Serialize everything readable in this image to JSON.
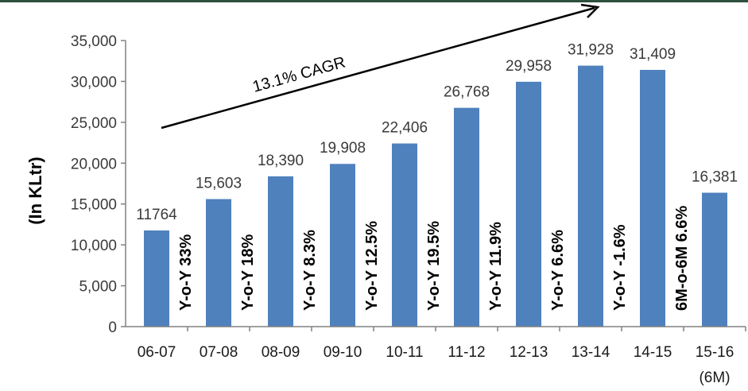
{
  "colors": {
    "bar": "#4F81BD",
    "top_rule": "#2F4F3F",
    "axis": "#808080"
  },
  "chart_data": {
    "type": "bar",
    "ylabel": "(In KLtr)",
    "ylim": [
      0,
      35000
    ],
    "yticks": [
      "0",
      "5,000",
      "10,000",
      "15,000",
      "20,000",
      "25,000",
      "30,000",
      "35,000"
    ],
    "grid": false,
    "categories": [
      "06-07",
      "07-08",
      "08-09",
      "09-10",
      "10-11",
      "11-12",
      "12-13",
      "13-14",
      "14-15",
      "15-16"
    ],
    "category_sublabels": [
      "",
      "",
      "",
      "",
      "",
      "",
      "",
      "",
      "",
      "(6M)"
    ],
    "values": [
      11764,
      15603,
      18390,
      19908,
      22406,
      26768,
      29958,
      31928,
      31409,
      16381
    ],
    "data_labels": [
      "11764",
      "15,603",
      "18,390",
      "19,908",
      "22,406",
      "26,768",
      "29,958",
      "31,928",
      "31,409",
      "16,381"
    ],
    "growth_labels": [
      "Y-o-Y  33%",
      "Y-o-Y  18%",
      "Y-o-Y  8.3%",
      "Y-o-Y 12.5%",
      "Y-o-Y  19.5%",
      "Y-o-Y  11.9%",
      "Y-o-Y  6.6%",
      "Y-o-Y  -1.6%",
      "6M-o-6M  6.6%"
    ],
    "annotation": "13.1% CAGR"
  }
}
